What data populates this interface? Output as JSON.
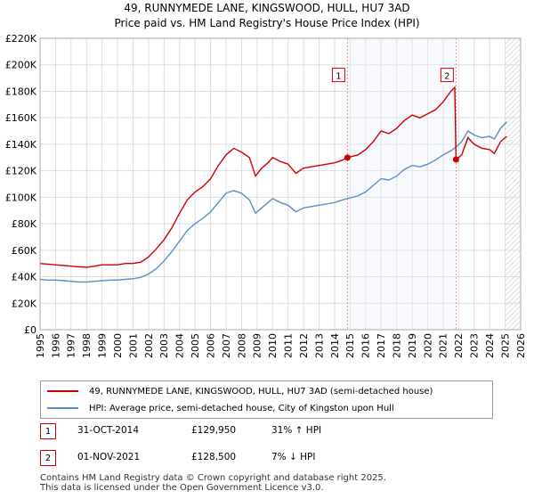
{
  "title": "49, RUNNYMEDE LANE, KINGSWOOD, HULL, HU7 3AD",
  "subtitle": "Price paid vs. HM Land Registry's House Price Index (HPI)",
  "chart_data": {
    "type": "line",
    "title": "49, RUNNYMEDE LANE, KINGSWOOD, HULL, HU7 3AD",
    "subtitle": "Price paid vs. HM Land Registry's House Price Index (HPI)",
    "xlim": [
      1995,
      2026
    ],
    "ylim": [
      0,
      220000
    ],
    "x_ticks": [
      "1995",
      "1996",
      "1997",
      "1998",
      "1999",
      "2000",
      "2001",
      "2002",
      "2003",
      "2004",
      "2005",
      "2006",
      "2007",
      "2008",
      "2009",
      "2010",
      "2011",
      "2012",
      "2013",
      "2014",
      "2015",
      "2016",
      "2017",
      "2018",
      "2019",
      "2020",
      "2021",
      "2022",
      "2023",
      "2024",
      "2025",
      "2026"
    ],
    "y_ticks": [
      {
        "value": 0,
        "label": "£0"
      },
      {
        "value": 20000,
        "label": "£20K"
      },
      {
        "value": 40000,
        "label": "£40K"
      },
      {
        "value": 60000,
        "label": "£60K"
      },
      {
        "value": 80000,
        "label": "£80K"
      },
      {
        "value": 100000,
        "label": "£100K"
      },
      {
        "value": 120000,
        "label": "£120K"
      },
      {
        "value": 140000,
        "label": "£140K"
      },
      {
        "value": 160000,
        "label": "£160K"
      },
      {
        "value": 180000,
        "label": "£180K"
      },
      {
        "value": 200000,
        "label": "£200K"
      },
      {
        "value": 220000,
        "label": "£220K"
      }
    ],
    "grid": true,
    "future_hatch_from": 2025.0,
    "series": [
      {
        "name": "49, RUNNYMEDE LANE, KINGSWOOD, HULL, HU7 3AD (semi-detached house)",
        "color": "#cc0000",
        "points": [
          [
            1995.0,
            50000
          ],
          [
            1995.5,
            49500
          ],
          [
            1996.0,
            49000
          ],
          [
            1996.5,
            48500
          ],
          [
            1997.0,
            48000
          ],
          [
            1997.5,
            47500
          ],
          [
            1998.0,
            47000
          ],
          [
            1998.5,
            48000
          ],
          [
            1999.0,
            49000
          ],
          [
            1999.5,
            49000
          ],
          [
            2000.0,
            49000
          ],
          [
            2000.5,
            50000
          ],
          [
            2001.0,
            50000
          ],
          [
            2001.5,
            51000
          ],
          [
            2002.0,
            55000
          ],
          [
            2002.5,
            61000
          ],
          [
            2003.0,
            68000
          ],
          [
            2003.5,
            77000
          ],
          [
            2004.0,
            88000
          ],
          [
            2004.5,
            98000
          ],
          [
            2005.0,
            104000
          ],
          [
            2005.5,
            108000
          ],
          [
            2006.0,
            114000
          ],
          [
            2006.5,
            124000
          ],
          [
            2007.0,
            132000
          ],
          [
            2007.5,
            137000
          ],
          [
            2008.0,
            134000
          ],
          [
            2008.5,
            130000
          ],
          [
            2008.9,
            116000
          ],
          [
            2009.3,
            122000
          ],
          [
            2009.7,
            126000
          ],
          [
            2010.0,
            130000
          ],
          [
            2010.5,
            127000
          ],
          [
            2011.0,
            125000
          ],
          [
            2011.5,
            118000
          ],
          [
            2012.0,
            122000
          ],
          [
            2012.5,
            123000
          ],
          [
            2013.0,
            124000
          ],
          [
            2013.5,
            125000
          ],
          [
            2014.0,
            126000
          ],
          [
            2014.5,
            128000
          ],
          [
            2014.83,
            129950
          ],
          [
            2015.5,
            132000
          ],
          [
            2016.0,
            136000
          ],
          [
            2016.5,
            142000
          ],
          [
            2017.0,
            150000
          ],
          [
            2017.5,
            148000
          ],
          [
            2018.0,
            152000
          ],
          [
            2018.5,
            158000
          ],
          [
            2019.0,
            162000
          ],
          [
            2019.5,
            160000
          ],
          [
            2020.0,
            163000
          ],
          [
            2020.5,
            166000
          ],
          [
            2021.0,
            172000
          ],
          [
            2021.5,
            180000
          ],
          [
            2021.75,
            183000
          ],
          [
            2021.83,
            128500
          ],
          [
            2022.2,
            132000
          ],
          [
            2022.6,
            145000
          ],
          [
            2023.0,
            140000
          ],
          [
            2023.5,
            137000
          ],
          [
            2024.0,
            136000
          ],
          [
            2024.3,
            133000
          ],
          [
            2024.7,
            142000
          ],
          [
            2025.1,
            146000
          ]
        ]
      },
      {
        "name": "HPI: Average price, semi-detached house, City of Kingston upon Hull",
        "color": "#5b8fc9",
        "points": [
          [
            1995.0,
            38000
          ],
          [
            1995.5,
            37500
          ],
          [
            1996.0,
            37500
          ],
          [
            1996.5,
            37000
          ],
          [
            1997.0,
            36500
          ],
          [
            1997.5,
            36000
          ],
          [
            1998.0,
            36000
          ],
          [
            1998.5,
            36500
          ],
          [
            1999.0,
            37000
          ],
          [
            1999.5,
            37500
          ],
          [
            2000.0,
            37500
          ],
          [
            2000.5,
            38000
          ],
          [
            2001.0,
            38500
          ],
          [
            2001.5,
            39500
          ],
          [
            2002.0,
            42000
          ],
          [
            2002.5,
            46000
          ],
          [
            2003.0,
            52000
          ],
          [
            2003.5,
            59000
          ],
          [
            2004.0,
            67000
          ],
          [
            2004.5,
            75000
          ],
          [
            2005.0,
            80000
          ],
          [
            2005.5,
            84000
          ],
          [
            2006.0,
            89000
          ],
          [
            2006.5,
            96000
          ],
          [
            2007.0,
            103000
          ],
          [
            2007.5,
            105000
          ],
          [
            2008.0,
            103000
          ],
          [
            2008.5,
            98000
          ],
          [
            2008.9,
            88000
          ],
          [
            2009.3,
            92000
          ],
          [
            2009.7,
            96000
          ],
          [
            2010.0,
            99000
          ],
          [
            2010.5,
            96000
          ],
          [
            2011.0,
            94000
          ],
          [
            2011.5,
            89000
          ],
          [
            2012.0,
            92000
          ],
          [
            2012.5,
            93000
          ],
          [
            2013.0,
            94000
          ],
          [
            2013.5,
            95000
          ],
          [
            2014.0,
            96000
          ],
          [
            2014.5,
            98000
          ],
          [
            2014.83,
            99000
          ],
          [
            2015.5,
            101000
          ],
          [
            2016.0,
            104000
          ],
          [
            2016.5,
            109000
          ],
          [
            2017.0,
            114000
          ],
          [
            2017.5,
            113000
          ],
          [
            2018.0,
            116000
          ],
          [
            2018.5,
            121000
          ],
          [
            2019.0,
            124000
          ],
          [
            2019.5,
            123000
          ],
          [
            2020.0,
            125000
          ],
          [
            2020.5,
            128000
          ],
          [
            2021.0,
            132000
          ],
          [
            2021.5,
            135000
          ],
          [
            2021.83,
            138000
          ],
          [
            2022.2,
            142000
          ],
          [
            2022.6,
            150000
          ],
          [
            2023.0,
            147000
          ],
          [
            2023.5,
            145000
          ],
          [
            2024.0,
            146000
          ],
          [
            2024.3,
            144000
          ],
          [
            2024.7,
            152000
          ],
          [
            2025.1,
            157000
          ]
        ]
      }
    ],
    "markers": [
      {
        "label": "1",
        "x": 2014.83,
        "y": 129950,
        "box_y": 192000
      },
      {
        "label": "2",
        "x": 2021.83,
        "y": 128500,
        "box_y": 192000
      }
    ]
  },
  "legend": {
    "items": [
      {
        "label": "49, RUNNYMEDE LANE, KINGSWOOD, HULL, HU7 3AD (semi-detached house)",
        "color": "#cc0000"
      },
      {
        "label": "HPI: Average price, semi-detached house, City of Kingston upon Hull",
        "color": "#5b8fc9"
      }
    ]
  },
  "sales": [
    {
      "num": "1",
      "date": "31-OCT-2014",
      "price": "£129,950",
      "hpi": "31% ↑ HPI"
    },
    {
      "num": "2",
      "date": "01-NOV-2021",
      "price": "£128,500",
      "hpi": "7% ↓ HPI"
    }
  ],
  "footer": {
    "line1": "Contains HM Land Registry data © Crown copyright and database right 2025.",
    "line2": "This data is licensed under the Open Government Licence v3.0."
  }
}
